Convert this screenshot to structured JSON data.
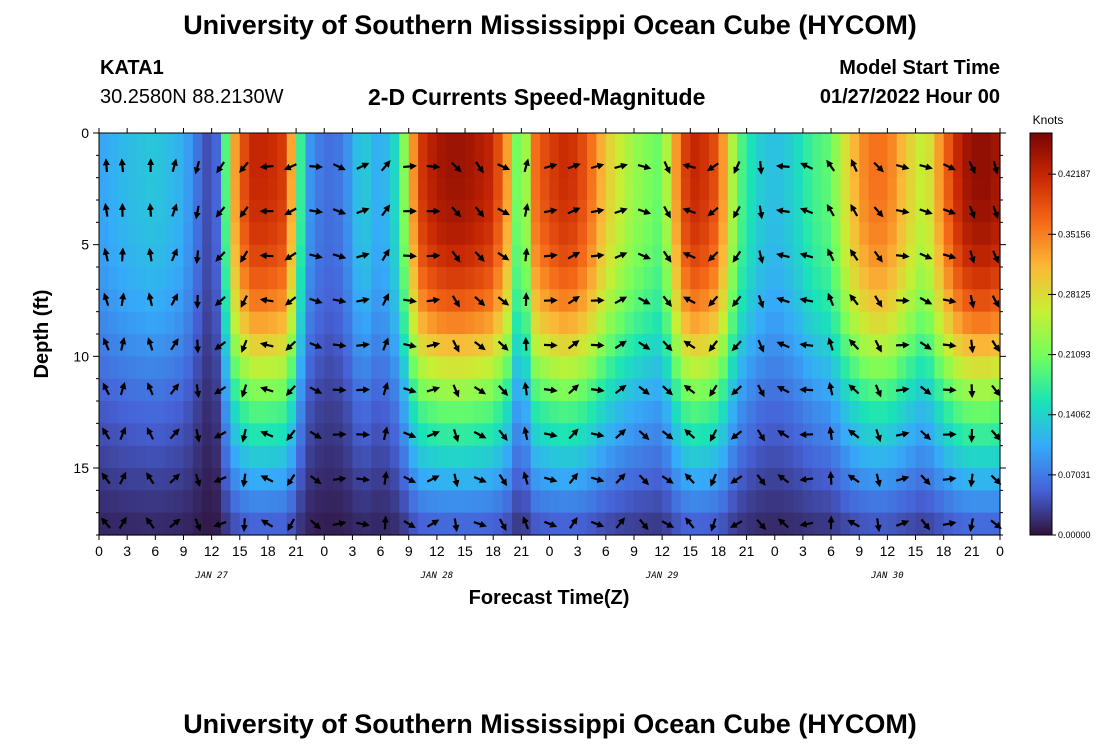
{
  "header": {
    "title": "University of Southern Mississippi Ocean Cube (HYCOM)",
    "station_id": "KATA1",
    "station_coords": "30.2580N  88.2130W",
    "subtitle": "2-D Currents Speed-Magnitude",
    "model_start_label": "Model Start Time",
    "model_start_value": "01/27/2022 Hour 00"
  },
  "footer": {
    "repeat_title": "University of Southern Mississippi Ocean Cube (HYCOM)"
  },
  "chart_data": {
    "type": "heatmap",
    "title": "2-D Currents Speed-Magnitude",
    "xlabel": "Forecast Time(Z)",
    "ylabel": "Depth (ft)",
    "x_hours": [
      0,
      96
    ],
    "ylim": [
      0,
      18
    ],
    "x_tick_labels": [
      "0",
      "3",
      "6",
      "9",
      "12",
      "15",
      "18",
      "21",
      "0",
      "3",
      "6",
      "9",
      "12",
      "15",
      "18",
      "21",
      "0",
      "3",
      "6",
      "9",
      "12",
      "15",
      "18",
      "21",
      "0",
      "3",
      "6",
      "9",
      "12",
      "15",
      "18",
      "21",
      "0"
    ],
    "date_labels": [
      {
        "label": "JAN 27",
        "hour": 12
      },
      {
        "label": "JAN 28",
        "hour": 36
      },
      {
        "label": "JAN 29",
        "hour": 60
      },
      {
        "label": "JAN 30",
        "hour": 84
      }
    ],
    "y_ticks": [
      0,
      5,
      10,
      15
    ],
    "depth_rows": [
      0,
      1.5,
      3.5,
      5.5,
      7.5,
      9.5,
      11.5,
      13.5,
      15.5,
      17.5
    ],
    "speed_profile": {
      "hours": [
        0,
        3,
        6,
        9,
        11,
        12,
        13,
        14,
        16,
        18,
        20,
        21,
        22,
        24,
        26,
        28,
        30,
        32,
        34,
        36,
        38,
        40,
        42,
        44,
        45,
        46,
        48,
        50,
        52,
        54,
        56,
        58,
        60,
        62,
        63,
        64,
        66,
        68,
        70,
        72,
        74,
        76,
        78,
        80,
        82,
        84,
        86,
        88,
        90,
        92,
        94,
        96
      ],
      "values": [
        0.1,
        0.12,
        0.13,
        0.11,
        0.05,
        0.03,
        0.08,
        0.3,
        0.42,
        0.42,
        0.4,
        0.25,
        0.1,
        0.06,
        0.07,
        0.14,
        0.1,
        0.16,
        0.4,
        0.44,
        0.45,
        0.44,
        0.42,
        0.3,
        0.12,
        0.35,
        0.4,
        0.42,
        0.38,
        0.3,
        0.25,
        0.22,
        0.2,
        0.38,
        0.42,
        0.42,
        0.38,
        0.2,
        0.14,
        0.12,
        0.14,
        0.18,
        0.2,
        0.3,
        0.36,
        0.36,
        0.3,
        0.25,
        0.36,
        0.44,
        0.46,
        0.44
      ]
    },
    "depth_factor": [
      1.0,
      1.0,
      0.98,
      0.92,
      0.82,
      0.65,
      0.48,
      0.35,
      0.22,
      0.1
    ],
    "colorbar": {
      "label": "Knots",
      "min": 0.0,
      "max": 0.47,
      "tick_values": [
        0.0,
        0.07031,
        0.14062,
        0.21093,
        0.28125,
        0.35156,
        0.42187
      ],
      "tick_labels": [
        "0.00000",
        "0.07031",
        "0.14062",
        "0.21093",
        "0.28125",
        "0.35156",
        "0.42187"
      ],
      "colormap": [
        "#30123b",
        "#4662d7",
        "#36aaf9",
        "#1ae4b6",
        "#72fe5e",
        "#c7ef34",
        "#fbb938",
        "#f56918",
        "#c92903",
        "#7a0403"
      ]
    },
    "arrow_hours": [
      0.8,
      2.5,
      5.5,
      8.0,
      10.5,
      13.0,
      15.5,
      18.0,
      20.5,
      23.0,
      25.5,
      28.0,
      30.5,
      33.0,
      35.5,
      38.0,
      40.5,
      43.0,
      45.5,
      48.0,
      50.5,
      53.0,
      55.5,
      58.0,
      60.5,
      63.0,
      65.5,
      68.0,
      70.5,
      73.0,
      75.5,
      78.0,
      80.5,
      83.0,
      85.5,
      88.0,
      90.5,
      93.0,
      95.5
    ],
    "arrow_directions_deg": [
      0,
      350,
      5,
      10,
      200,
      210,
      225,
      260,
      250,
      90,
      120,
      60,
      45,
      80,
      100,
      130,
      150,
      110,
      20,
      70,
      75,
      70,
      80,
      100,
      160,
      280,
      240,
      200,
      180,
      270,
      300,
      320,
      340,
      130,
      110,
      100,
      120,
      150,
      170
    ]
  }
}
